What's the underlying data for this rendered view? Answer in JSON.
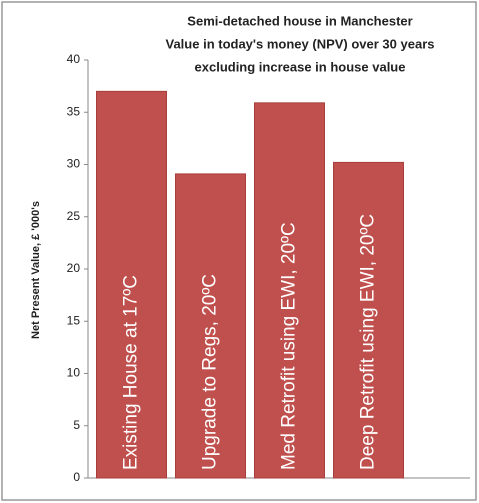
{
  "chart_data": {
    "type": "bar",
    "title_lines": [
      "Semi-detached house in Manchester",
      "Value in today's money (NPV) over 30 years",
      "excluding increase in house value"
    ],
    "y_label": "Net Present Value, £ '000's",
    "categories": [
      "Existing House at 17ºC",
      "Upgrade to Regs, 20ºC",
      "Med Retrofit using EWI, 20ºC",
      "Deep Retrofit using EWI, 20ºC"
    ],
    "values": [
      37,
      29.1,
      35.9,
      30.2
    ],
    "color": "#c0504d",
    "ylim": [
      0,
      40
    ],
    "yticks": [
      0,
      5,
      10,
      15,
      20,
      25,
      30,
      35,
      40
    ],
    "grid": false
  }
}
